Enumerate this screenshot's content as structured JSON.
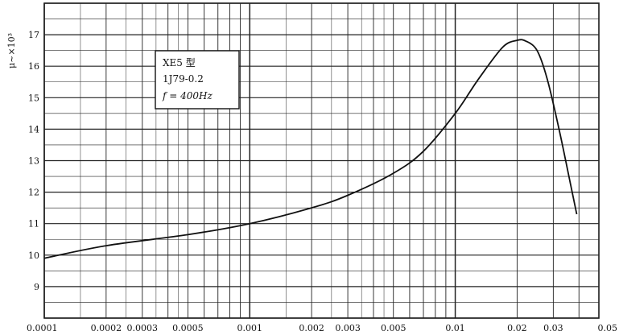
{
  "chart_data": {
    "type": "line",
    "title": "",
    "xlabel": "",
    "ylabel": "μ~×10³",
    "x_scale": "log",
    "xlim": [
      0.0001,
      0.05
    ],
    "ylim": [
      8,
      18
    ],
    "x_tick_labels": [
      "0.0001",
      "0.0002",
      "0.0003",
      "0.0005",
      "0.001",
      "0.002",
      "0.003",
      "0.005",
      "0.01",
      "0.02",
      "0.03",
      "0.05"
    ],
    "y_tick_labels": [
      "9",
      "10",
      "11",
      "12",
      "13",
      "14",
      "15",
      "16",
      "17"
    ],
    "grid": true,
    "annotation": {
      "lines": [
        "XE5 型",
        "1J79-0.2",
        "f = 400Hz"
      ]
    },
    "series": [
      {
        "x": [
          0.0001,
          0.0002,
          0.0005,
          0.001,
          0.002,
          0.003,
          0.005,
          0.007,
          0.01,
          0.013,
          0.017,
          0.02,
          0.022,
          0.025,
          0.028,
          0.032,
          0.036,
          0.039
        ],
        "y": [
          9.9,
          10.3,
          10.65,
          11.0,
          11.5,
          11.9,
          12.6,
          13.3,
          14.5,
          15.6,
          16.6,
          16.82,
          16.8,
          16.5,
          15.6,
          14.0,
          12.4,
          11.3
        ]
      }
    ]
  }
}
